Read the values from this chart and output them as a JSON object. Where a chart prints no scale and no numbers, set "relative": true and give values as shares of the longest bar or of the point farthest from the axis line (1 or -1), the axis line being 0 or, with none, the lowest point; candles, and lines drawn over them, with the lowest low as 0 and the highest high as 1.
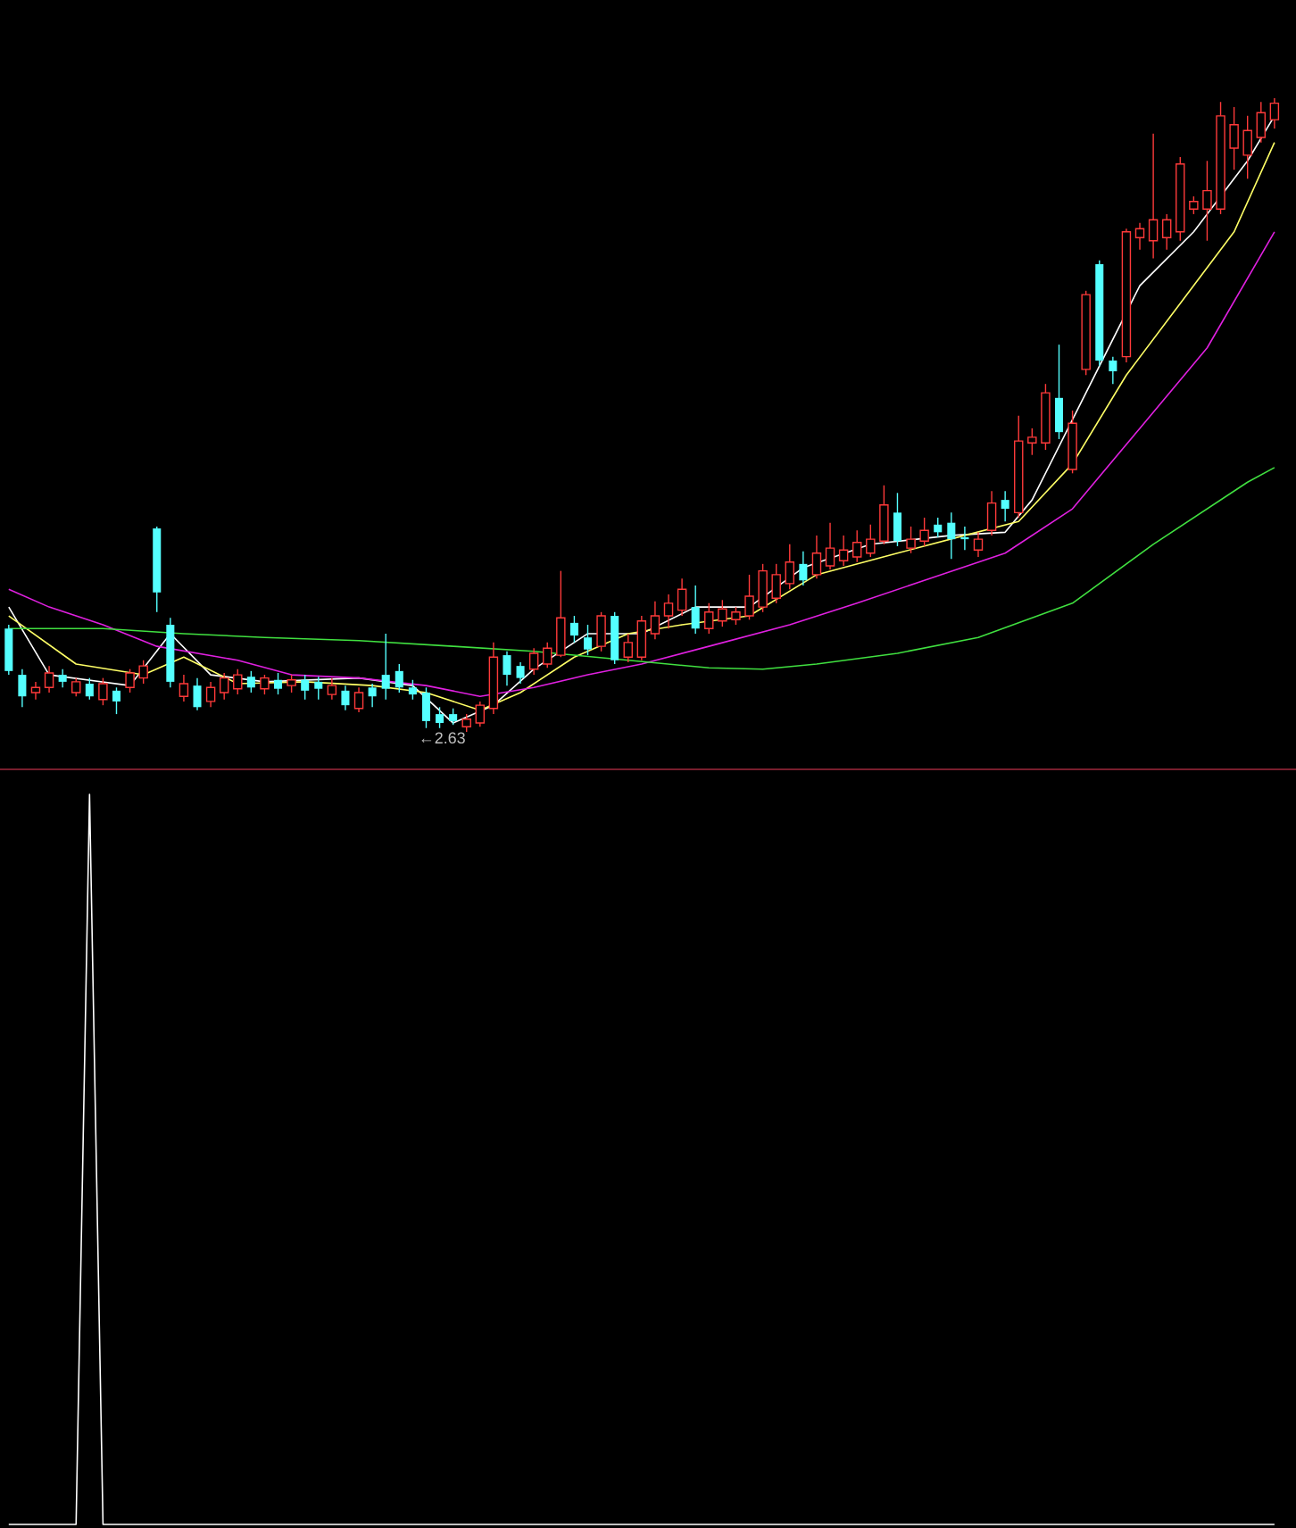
{
  "chart_data": [
    {
      "type": "candlestick",
      "relative": true,
      "categories": [
        null,
        null,
        null,
        null,
        null,
        null,
        null,
        null,
        null,
        null,
        null,
        null,
        null,
        null,
        null,
        null,
        null,
        null,
        null,
        null,
        null,
        null,
        null,
        null,
        null,
        null,
        null,
        null,
        null,
        null,
        null,
        null,
        null,
        null,
        null,
        null,
        null,
        null,
        null,
        null,
        null,
        null,
        null,
        null,
        null,
        null,
        null,
        null,
        null,
        null,
        null,
        null,
        null,
        null,
        null,
        null,
        null,
        null,
        null,
        null,
        null,
        null,
        null,
        null,
        null,
        null,
        null,
        null,
        null,
        null,
        null,
        null,
        null,
        null,
        null,
        null,
        null,
        null,
        null,
        null,
        null,
        null,
        null,
        null,
        null,
        null,
        null,
        null,
        null,
        null,
        null,
        null,
        null,
        null,
        null
      ],
      "ohlc": [
        [
          0.163,
          0.169,
          0.09,
          0.096
        ],
        [
          0.09,
          0.099,
          0.039,
          0.056
        ],
        [
          0.062,
          0.079,
          0.051,
          0.07
        ],
        [
          0.07,
          0.104,
          0.062,
          0.093
        ],
        [
          0.09,
          0.099,
          0.07,
          0.079
        ],
        [
          0.062,
          0.085,
          0.056,
          0.079
        ],
        [
          0.076,
          0.085,
          0.051,
          0.056
        ],
        [
          0.051,
          0.085,
          0.042,
          0.076
        ],
        [
          0.065,
          0.07,
          0.028,
          0.048
        ],
        [
          0.07,
          0.099,
          0.062,
          0.093
        ],
        [
          0.085,
          0.113,
          0.076,
          0.104
        ],
        [
          0.321,
          0.324,
          0.189,
          0.22
        ],
        [
          0.169,
          0.18,
          0.07,
          0.079
        ],
        [
          0.056,
          0.09,
          0.048,
          0.076
        ],
        [
          0.073,
          0.085,
          0.034,
          0.039
        ],
        [
          0.048,
          0.079,
          0.039,
          0.07
        ],
        [
          0.062,
          0.093,
          0.051,
          0.085
        ],
        [
          0.068,
          0.099,
          0.059,
          0.09
        ],
        [
          0.087,
          0.096,
          0.062,
          0.07
        ],
        [
          0.068,
          0.09,
          0.059,
          0.085
        ],
        [
          0.082,
          0.093,
          0.059,
          0.068
        ],
        [
          0.073,
          0.09,
          0.062,
          0.082
        ],
        [
          0.082,
          0.09,
          0.051,
          0.065
        ],
        [
          0.079,
          0.087,
          0.051,
          0.068
        ],
        [
          0.059,
          0.085,
          0.051,
          0.073
        ],
        [
          0.065,
          0.073,
          0.034,
          0.042
        ],
        [
          0.037,
          0.07,
          0.031,
          0.062
        ],
        [
          0.07,
          0.076,
          0.039,
          0.056
        ],
        [
          0.09,
          0.155,
          0.051,
          0.068
        ],
        [
          0.096,
          0.107,
          0.062,
          0.07
        ],
        [
          0.07,
          0.082,
          0.051,
          0.059
        ],
        [
          0.062,
          0.07,
          0.006,
          0.017
        ],
        [
          0.028,
          0.039,
          0.006,
          0.014
        ],
        [
          0.028,
          0.037,
          0.011,
          0.017
        ],
        [
          0.008,
          0.028,
          0,
          0.02
        ],
        [
          0.014,
          0.048,
          0.008,
          0.042
        ],
        [
          0.037,
          0.141,
          0.028,
          0.118
        ],
        [
          0.121,
          0.127,
          0.073,
          0.09
        ],
        [
          0.104,
          0.11,
          0.076,
          0.085
        ],
        [
          0.099,
          0.132,
          0.09,
          0.124
        ],
        [
          0.107,
          0.141,
          0.101,
          0.132
        ],
        [
          0.121,
          0.254,
          0.118,
          0.18
        ],
        [
          0.172,
          0.183,
          0.141,
          0.152
        ],
        [
          0.149,
          0.169,
          0.121,
          0.13
        ],
        [
          0.135,
          0.189,
          0.127,
          0.183
        ],
        [
          0.183,
          0.189,
          0.107,
          0.113
        ],
        [
          0.118,
          0.155,
          0.11,
          0.141
        ],
        [
          0.118,
          0.183,
          0.113,
          0.175
        ],
        [
          0.155,
          0.206,
          0.146,
          0.183
        ],
        [
          0.183,
          0.217,
          0.163,
          0.203
        ],
        [
          0.192,
          0.242,
          0.183,
          0.225
        ],
        [
          0.197,
          0.231,
          0.155,
          0.163
        ],
        [
          0.163,
          0.203,
          0.155,
          0.189
        ],
        [
          0.175,
          0.208,
          0.166,
          0.194
        ],
        [
          0.177,
          0.197,
          0.169,
          0.189
        ],
        [
          0.183,
          0.248,
          0.177,
          0.214
        ],
        [
          0.197,
          0.265,
          0.189,
          0.254
        ],
        [
          0.211,
          0.265,
          0.203,
          0.248
        ],
        [
          0.234,
          0.296,
          0.225,
          0.268
        ],
        [
          0.265,
          0.285,
          0.231,
          0.239
        ],
        [
          0.248,
          0.31,
          0.242,
          0.282
        ],
        [
          0.262,
          0.33,
          0.256,
          0.29
        ],
        [
          0.27,
          0.31,
          0.262,
          0.287
        ],
        [
          0.276,
          0.318,
          0.268,
          0.299
        ],
        [
          0.282,
          0.327,
          0.276,
          0.304
        ],
        [
          0.301,
          0.389,
          0.296,
          0.358
        ],
        [
          0.346,
          0.377,
          0.293,
          0.301
        ],
        [
          0.29,
          0.324,
          0.282,
          0.304
        ],
        [
          0.301,
          0.338,
          0.293,
          0.318
        ],
        [
          0.327,
          0.338,
          0.307,
          0.315
        ],
        [
          0.33,
          0.346,
          0.273,
          0.304
        ],
        [
          0.307,
          0.324,
          0.287,
          0.304
        ],
        [
          0.287,
          0.315,
          0.276,
          0.304
        ],
        [
          0.318,
          0.38,
          0.31,
          0.361
        ],
        [
          0.366,
          0.38,
          0.332,
          0.352
        ],
        [
          0.346,
          0.499,
          0.338,
          0.459
        ],
        [
          0.456,
          0.479,
          0.437,
          0.465
        ],
        [
          0.456,
          0.549,
          0.445,
          0.535
        ],
        [
          0.527,
          0.611,
          0.462,
          0.473
        ],
        [
          0.414,
          0.507,
          0.408,
          0.487
        ],
        [
          0.572,
          0.696,
          0.563,
          0.69
        ],
        [
          0.738,
          0.744,
          0.577,
          0.586
        ],
        [
          0.586,
          0.592,
          0.549,
          0.569
        ],
        [
          0.592,
          0.794,
          0.583,
          0.789
        ],
        [
          0.78,
          0.803,
          0.761,
          0.794
        ],
        [
          0.775,
          0.944,
          0.747,
          0.808
        ],
        [
          0.78,
          0.817,
          0.761,
          0.808
        ],
        [
          0.789,
          0.907,
          0.775,
          0.896
        ],
        [
          0.825,
          0.845,
          0.817,
          0.837
        ],
        [
          0.825,
          0.901,
          0.775,
          0.854
        ],
        [
          0.825,
          0.994,
          0.817,
          0.972
        ],
        [
          0.921,
          0.986,
          0.887,
          0.958
        ],
        [
          0.91,
          0.972,
          0.873,
          0.949
        ],
        [
          0.938,
          0.994,
          0.93,
          0.977
        ],
        [
          0.966,
          1,
          0.952,
          0.992
        ]
      ],
      "series": [
        {
          "type": "line",
          "color": "#ffffff",
          "values": [
            0.197,
            null,
            null,
            0.09,
            null,
            null,
            null,
            null,
            null,
            0.073,
            null,
            null,
            0.155,
            null,
            null,
            0.09,
            null,
            null,
            null,
            0.079,
            null,
            null,
            null,
            null,
            null,
            null,
            0.085,
            null,
            null,
            null,
            0.073,
            null,
            null,
            0.014,
            null,
            null,
            0.042,
            null,
            null,
            0.099,
            null,
            null,
            null,
            0.155,
            null,
            null,
            null,
            0.155,
            null,
            null,
            null,
            0.197,
            null,
            null,
            null,
            0.197,
            null,
            null,
            null,
            0.259,
            null,
            null,
            null,
            null,
            0.296,
            null,
            null,
            null,
            null,
            null,
            0.31,
            null,
            null,
            null,
            0.315,
            null,
            0.366,
            null,
            null,
            null,
            0.535,
            null,
            null,
            null,
            0.704,
            null,
            null,
            null,
            0.789,
            null,
            null,
            null,
            0.901,
            null,
            0.972
          ]
        },
        {
          "type": "line",
          "color": "#ffff66",
          "values": [
            0.183,
            null,
            null,
            null,
            null,
            0.107,
            null,
            null,
            null,
            null,
            0.09,
            null,
            null,
            0.118,
            null,
            null,
            null,
            0.076,
            null,
            null,
            null,
            null,
            0.079,
            null,
            null,
            null,
            null,
            0.073,
            null,
            null,
            null,
            0.062,
            null,
            null,
            null,
            0.034,
            null,
            null,
            0.062,
            null,
            null,
            null,
            0.118,
            null,
            null,
            null,
            0.155,
            null,
            null,
            null,
            0.169,
            null,
            null,
            null,
            null,
            0.183,
            null,
            null,
            null,
            null,
            0.248,
            null,
            null,
            null,
            null,
            null,
            0.282,
            null,
            null,
            null,
            null,
            0.31,
            null,
            null,
            null,
            0.332,
            null,
            null,
            null,
            0.423,
            null,
            null,
            null,
            0.563,
            null,
            null,
            null,
            0.676,
            null,
            null,
            null,
            0.789,
            null,
            null,
            0.93
          ]
        },
        {
          "type": "line",
          "color": "#e020e0",
          "values": [
            0.225,
            null,
            null,
            0.197,
            null,
            null,
            null,
            0.169,
            null,
            null,
            null,
            0.135,
            null,
            null,
            null,
            null,
            null,
            0.113,
            null,
            null,
            null,
            0.09,
            null,
            null,
            null,
            null,
            0.085,
            null,
            null,
            null,
            null,
            0.073,
            null,
            null,
            null,
            0.056,
            null,
            null,
            null,
            0.07,
            null,
            null,
            null,
            0.09,
            null,
            null,
            null,
            0.107,
            null,
            null,
            null,
            null,
            0.135,
            null,
            null,
            null,
            null,
            null,
            0.169,
            null,
            null,
            null,
            null,
            0.203,
            null,
            null,
            null,
            null,
            0.239,
            null,
            null,
            null,
            null,
            null,
            0.282,
            null,
            null,
            null,
            null,
            0.352,
            null,
            null,
            null,
            null,
            0.479,
            null,
            null,
            null,
            null,
            0.606,
            null,
            null,
            null,
            null,
            0.789
          ]
        },
        {
          "type": "line",
          "color": "#40e040",
          "values": [
            0.163,
            null,
            null,
            null,
            null,
            null,
            null,
            0.163,
            null,
            null,
            null,
            null,
            null,
            0.155,
            null,
            null,
            null,
            null,
            null,
            0.149,
            null,
            null,
            null,
            null,
            null,
            null,
            0.144,
            null,
            null,
            null,
            null,
            null,
            null,
            0.135,
            null,
            null,
            null,
            null,
            null,
            0.127,
            null,
            null,
            null,
            null,
            null,
            null,
            0.113,
            null,
            null,
            null,
            null,
            null,
            0.101,
            null,
            null,
            null,
            0.099,
            null,
            null,
            null,
            0.107,
            null,
            null,
            null,
            null,
            null,
            0.124,
            null,
            null,
            null,
            null,
            null,
            0.149,
            null,
            null,
            null,
            null,
            null,
            null,
            0.203,
            null,
            null,
            null,
            null,
            null,
            0.296,
            null,
            null,
            null,
            null,
            null,
            null,
            0.394,
            null,
            0.417
          ]
        }
      ],
      "annotations": [
        {
          "text": "←2.63",
          "y": 0
        }
      ]
    },
    {
      "type": "line",
      "relative": true,
      "color": "#ffffff",
      "categories": [
        null,
        null,
        null,
        null,
        null,
        null,
        null,
        null,
        null,
        null,
        null,
        null,
        null,
        null,
        null,
        null,
        null,
        null,
        null,
        null,
        null,
        null,
        null,
        null,
        null,
        null,
        null,
        null,
        null,
        null,
        null,
        null,
        null,
        null,
        null,
        null,
        null,
        null,
        null,
        null,
        null,
        null,
        null,
        null,
        null,
        null,
        null,
        null,
        null,
        null,
        null,
        null,
        null,
        null,
        null,
        null,
        null,
        null,
        null,
        null,
        null,
        null,
        null,
        null,
        null,
        null,
        null,
        null,
        null,
        null,
        null,
        null,
        null,
        null,
        null,
        null,
        null,
        null,
        null,
        null,
        null,
        null,
        null,
        null,
        null,
        null,
        null,
        null,
        null,
        null,
        null,
        null,
        null,
        null,
        null
      ],
      "values": [
        0,
        0,
        0,
        0,
        0,
        0,
        1,
        0,
        0,
        0,
        0,
        0,
        0,
        0,
        0,
        0,
        0,
        0,
        0,
        0,
        0,
        0,
        0,
        0,
        0,
        0,
        0,
        0,
        0,
        0,
        0,
        0,
        0,
        0,
        0,
        0,
        0,
        0,
        0,
        0,
        0,
        0,
        0,
        0,
        0,
        0,
        0,
        0,
        0,
        0,
        0,
        0,
        0,
        0,
        0,
        0,
        0,
        0,
        0,
        0,
        0,
        0,
        0,
        0,
        0,
        0,
        0,
        0,
        0,
        0,
        0,
        0,
        0,
        0,
        0,
        0,
        0,
        0,
        0,
        0,
        0,
        0,
        0,
        0,
        0,
        0,
        0,
        0,
        0,
        0,
        0,
        0,
        0,
        0,
        0
      ]
    }
  ]
}
